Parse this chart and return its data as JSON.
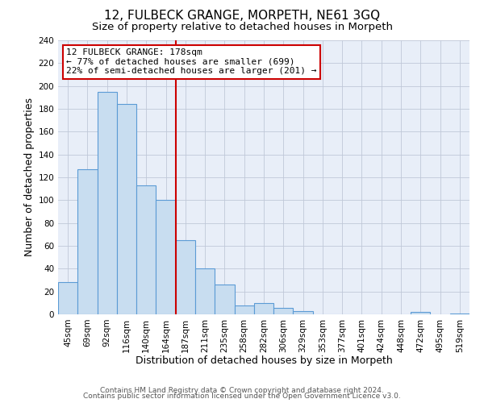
{
  "title": "12, FULBECK GRANGE, MORPETH, NE61 3GQ",
  "subtitle": "Size of property relative to detached houses in Morpeth",
  "xlabel": "Distribution of detached houses by size in Morpeth",
  "ylabel": "Number of detached properties",
  "bar_labels": [
    "45sqm",
    "69sqm",
    "92sqm",
    "116sqm",
    "140sqm",
    "164sqm",
    "187sqm",
    "211sqm",
    "235sqm",
    "258sqm",
    "282sqm",
    "306sqm",
    "329sqm",
    "353sqm",
    "377sqm",
    "401sqm",
    "424sqm",
    "448sqm",
    "472sqm",
    "495sqm",
    "519sqm"
  ],
  "bar_values": [
    28,
    127,
    195,
    184,
    113,
    100,
    65,
    40,
    26,
    8,
    10,
    6,
    3,
    0,
    0,
    0,
    0,
    0,
    2,
    0,
    1
  ],
  "bar_color": "#c8ddf0",
  "bar_edge_color": "#5b9bd5",
  "vline_color": "#cc0000",
  "annotation_title": "12 FULBECK GRANGE: 178sqm",
  "annotation_line1": "← 77% of detached houses are smaller (699)",
  "annotation_line2": "22% of semi-detached houses are larger (201) →",
  "annotation_box_color": "white",
  "annotation_box_edge": "#cc0000",
  "ylim": [
    0,
    240
  ],
  "yticks": [
    0,
    20,
    40,
    60,
    80,
    100,
    120,
    140,
    160,
    180,
    200,
    220,
    240
  ],
  "footer1": "Contains HM Land Registry data © Crown copyright and database right 2024.",
  "footer2": "Contains public sector information licensed under the Open Government Licence v3.0.",
  "title_fontsize": 11,
  "subtitle_fontsize": 9.5,
  "axis_label_fontsize": 9,
  "tick_fontsize": 7.5,
  "footer_fontsize": 6.5,
  "bg_color": "#e8eef8"
}
